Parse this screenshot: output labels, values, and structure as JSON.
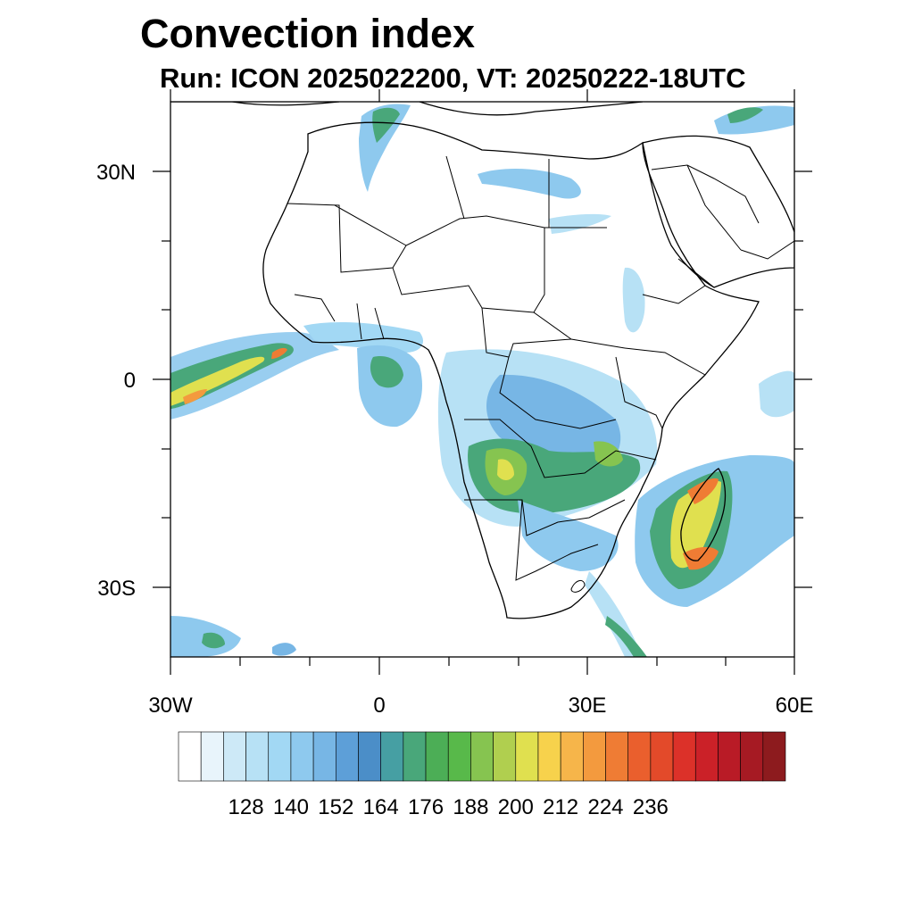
{
  "title": "Convection index",
  "subtitle": "Run: ICON 2025022200,  VT: 20250222-18UTC",
  "map": {
    "lat_labels": [
      "30N",
      "0",
      "30S"
    ],
    "lon_labels": [
      "30W",
      "0",
      "30E",
      "60E"
    ],
    "lat_values": [
      30,
      0,
      -30
    ],
    "lon_values": [
      -30,
      0,
      30,
      60
    ]
  },
  "colorbar": {
    "tick_labels": [
      "128",
      "140",
      "152",
      "164",
      "176",
      "188",
      "200",
      "212",
      "224",
      "236"
    ],
    "colors": [
      "#ffffff",
      "#e8f4fb",
      "#cde9f7",
      "#b7e1f5",
      "#a2d8f4",
      "#8ec9ee",
      "#77b6e5",
      "#5d9fd8",
      "#4b8ec8",
      "#469fa3",
      "#49a77a",
      "#4cae56",
      "#58b94a",
      "#86c450",
      "#b0cf4f",
      "#e0e04f",
      "#f7d24c",
      "#f6b54a",
      "#f39a3e",
      "#ef7c34",
      "#ea5f2d",
      "#e34a2a",
      "#dc3129",
      "#cb2128",
      "#b91b26",
      "#a61a23",
      "#8d1b1e"
    ]
  }
}
